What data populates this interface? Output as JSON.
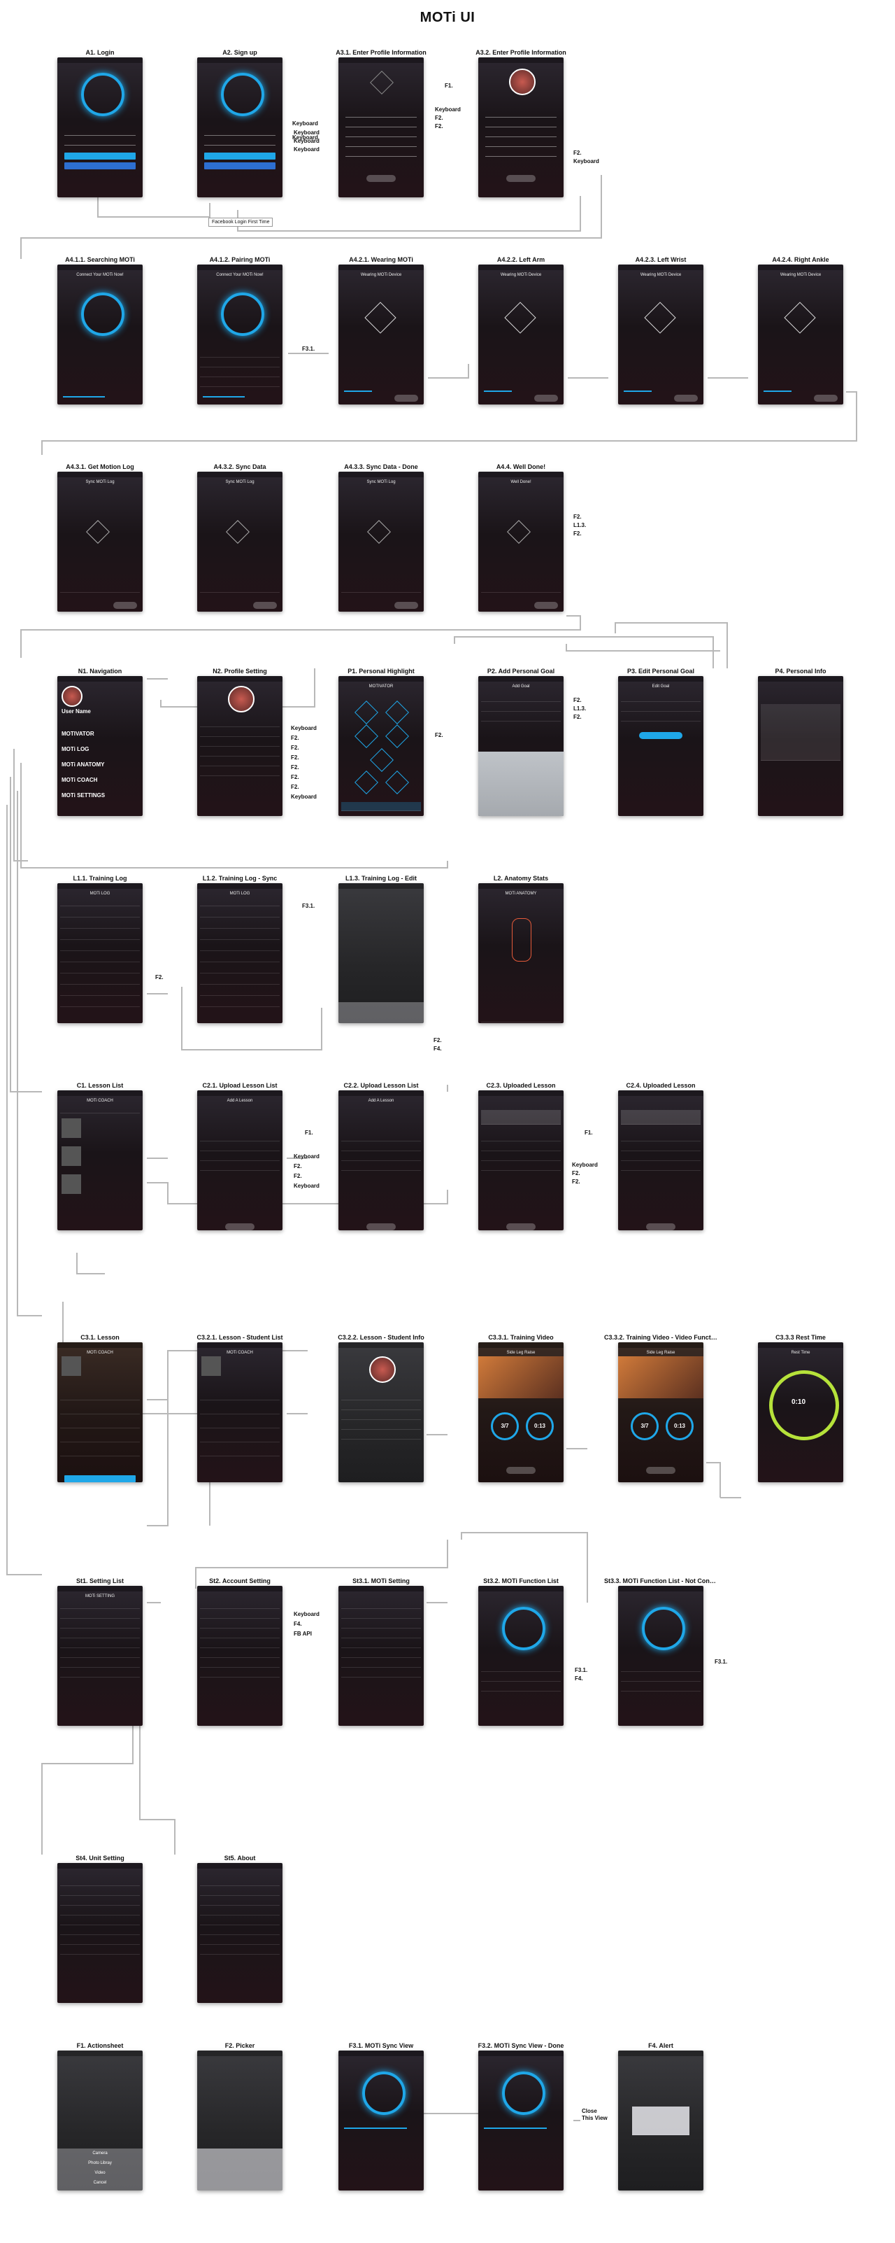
{
  "page_title": "MOTi UI",
  "brand_color": "#1fa7e8",
  "screens": [
    {
      "id": "a1",
      "label": "A1. Login",
      "inner": "",
      "kind": "login"
    },
    {
      "id": "a2",
      "label": "A2. Sign up",
      "inner": "",
      "kind": "login"
    },
    {
      "id": "a31",
      "label": "A3.1. Enter Profile Information",
      "inner": "",
      "kind": "form"
    },
    {
      "id": "a32",
      "label": "A3.2. Enter Profile Information",
      "inner": "",
      "kind": "formavatar"
    },
    {
      "id": "a411",
      "label": "A4.1.1. Searching MOTi",
      "inner": "Connect Your MOTi Now!",
      "kind": "ring"
    },
    {
      "id": "a412",
      "label": "A4.1.2. Pairing MOTi",
      "inner": "Connect Your MOTi Now!",
      "kind": "ringlist"
    },
    {
      "id": "a421",
      "label": "A4.2.1. Wearing MOTi",
      "inner": "Wearing MOTi Device",
      "kind": "device"
    },
    {
      "id": "a422",
      "label": "A4.2.2. Left Arm",
      "inner": "Wearing MOTi Device",
      "kind": "device"
    },
    {
      "id": "a423",
      "label": "A4.2.3. Left Wrist",
      "inner": "Wearing MOTi Device",
      "kind": "device"
    },
    {
      "id": "a424",
      "label": "A4.2.4. Right Ankle",
      "inner": "Wearing MOTi Device",
      "kind": "device"
    },
    {
      "id": "a431",
      "label": "A4.3.1. Get Motion Log",
      "inner": "Sync MOTi Log",
      "kind": "sync"
    },
    {
      "id": "a432",
      "label": "A4.3.2. Sync Data",
      "inner": "Sync MOTi Log",
      "kind": "sync"
    },
    {
      "id": "a433",
      "label": "A4.3.3. Sync Data - Done",
      "inner": "Sync MOTi Log",
      "kind": "sync"
    },
    {
      "id": "a44",
      "label": "A4.4. Well Done!",
      "inner": "Well Done!",
      "kind": "sync"
    },
    {
      "id": "n1",
      "label": "N1. Navigation",
      "inner": "",
      "kind": "nav"
    },
    {
      "id": "n2",
      "label": "N2. Profile Setting",
      "inner": "",
      "kind": "profile"
    },
    {
      "id": "p1",
      "label": "P1. Personal Highlight",
      "inner": "MOTIVATOR",
      "kind": "highlight"
    },
    {
      "id": "p2",
      "label": "P2. Add Personal Goal",
      "inner": "Add Goal",
      "kind": "goal"
    },
    {
      "id": "p3",
      "label": "P3. Edit Personal Goal",
      "inner": "Edit Goal",
      "kind": "goaledit"
    },
    {
      "id": "p4",
      "label": "P4. Personal Info",
      "inner": "",
      "kind": "info"
    },
    {
      "id": "l11",
      "label": "L1.1. Training Log",
      "inner": "MOTi LOG",
      "kind": "log"
    },
    {
      "id": "l12",
      "label": "L1.2. Training Log - Sync",
      "inner": "MOTi LOG",
      "kind": "log"
    },
    {
      "id": "l13",
      "label": "L1.3. Training Log - Edit",
      "inner": "",
      "kind": "logedit"
    },
    {
      "id": "l2",
      "label": "L2. Anatomy Stats",
      "inner": "MOTi ANATOMY",
      "kind": "anatomy"
    },
    {
      "id": "c1",
      "label": "C1. Lesson List",
      "inner": "MOTi COACH",
      "kind": "lessons"
    },
    {
      "id": "c21",
      "label": "C2.1. Upload Lesson List",
      "inner": "Add A Lesson",
      "kind": "upload"
    },
    {
      "id": "c22",
      "label": "C2.2. Upload Lesson List",
      "inner": "Add A Lesson",
      "kind": "upload"
    },
    {
      "id": "c23",
      "label": "C2.3. Uploaded Lesson",
      "inner": "",
      "kind": "uploaded"
    },
    {
      "id": "c24",
      "label": "C2.4. Uploaded Lesson",
      "inner": "",
      "kind": "uploaded"
    },
    {
      "id": "c31",
      "label": "C3.1. Lesson",
      "inner": "MOTi COACH",
      "kind": "lesson"
    },
    {
      "id": "c321",
      "label": "C3.2.1. Lesson - Student List",
      "inner": "MOTi COACH",
      "kind": "students"
    },
    {
      "id": "c322",
      "label": "C3.2.2. Lesson - Student Info",
      "inner": "",
      "kind": "studentinfo"
    },
    {
      "id": "c331",
      "label": "C3.3.1. Training Video",
      "inner": "Side Leg Raise",
      "kind": "video"
    },
    {
      "id": "c332",
      "label": "C3.3.2. Training Video - Video Function",
      "inner": "Side Leg Raise",
      "kind": "video"
    },
    {
      "id": "c333",
      "label": "C3.3.3 Rest Time",
      "inner": "Rest Time",
      "kind": "rest"
    },
    {
      "id": "st1",
      "label": "St1. Setting List",
      "inner": "MOTi SETTING",
      "kind": "settings"
    },
    {
      "id": "st2",
      "label": "St2. Account Setting",
      "inner": "",
      "kind": "account"
    },
    {
      "id": "st31",
      "label": "St3.1. MOTi Setting",
      "inner": "",
      "kind": "motiset"
    },
    {
      "id": "st32",
      "label": "St3.2. MOTi Function List",
      "inner": "",
      "kind": "ringbig"
    },
    {
      "id": "st33",
      "label": "St3.3. MOTi Function List - Not Connect",
      "inner": "",
      "kind": "ringbig"
    },
    {
      "id": "st4",
      "label": "St4. Unit Setting",
      "inner": "",
      "kind": "units"
    },
    {
      "id": "st5",
      "label": "St5. About",
      "inner": "",
      "kind": "about"
    },
    {
      "id": "f1",
      "label": "F1. Actionsheet",
      "inner": "",
      "kind": "actionsheet"
    },
    {
      "id": "f2",
      "label": "F2. Picker",
      "inner": "",
      "kind": "picker"
    },
    {
      "id": "f31",
      "label": "F3.1. MOTi Sync View",
      "inner": "",
      "kind": "syncview"
    },
    {
      "id": "f32",
      "label": "F3.2. MOTi Sync View - Done",
      "inner": "",
      "kind": "syncview"
    },
    {
      "id": "f4",
      "label": "F4. Alert",
      "inner": "",
      "kind": "alert"
    }
  ],
  "nav_items": [
    "MOTIVATOR",
    "MOTi LOG",
    "MOTi ANATOMY",
    "MOTi COACH",
    "MOTi SETTINGS"
  ],
  "nav_user": "User Name",
  "actionsheet_items": [
    "Camera",
    "Photo Libray",
    "Video",
    "Cancel"
  ],
  "rest_value": "0:10",
  "video_values": [
    "3/7",
    "0:13"
  ],
  "notes": {
    "facebook_note": "Facebook Login First Time",
    "close_view": "Close\nThis View"
  },
  "annotations": [
    {
      "id": "n_a1_k1",
      "text": "Keyboard"
    },
    {
      "id": "n_a1_k2",
      "text": "Keyboard"
    },
    {
      "id": "n_a2_k1",
      "text": "Keyboard"
    },
    {
      "id": "n_a2_k2",
      "text": "Keyboard"
    },
    {
      "id": "n_a2_k3",
      "text": "Keyboard"
    },
    {
      "id": "n_a31_f1",
      "text": "F1."
    },
    {
      "id": "n_a31_k",
      "text": "Keyboard"
    },
    {
      "id": "n_a31_f2a",
      "text": "F2."
    },
    {
      "id": "n_a31_f2b",
      "text": "F2."
    },
    {
      "id": "n_a32_f2",
      "text": "F2."
    },
    {
      "id": "n_a32_k",
      "text": "Keyboard"
    },
    {
      "id": "n_a412_f31",
      "text": "F3.1."
    },
    {
      "id": "n_a44_f2",
      "text": "F2."
    },
    {
      "id": "n_a44_l13",
      "text": "L1.3."
    },
    {
      "id": "n_a44_f2b",
      "text": "F2."
    },
    {
      "id": "n_n2_k1",
      "text": "Keyboard"
    },
    {
      "id": "n_n2_f2a",
      "text": "F2."
    },
    {
      "id": "n_n2_f2b",
      "text": "F2."
    },
    {
      "id": "n_n2_f2c",
      "text": "F2."
    },
    {
      "id": "n_n2_f2d",
      "text": "F2."
    },
    {
      "id": "n_n2_f2e",
      "text": "F2."
    },
    {
      "id": "n_n2_f2f",
      "text": "F2."
    },
    {
      "id": "n_n2_k2",
      "text": "Keyboard"
    },
    {
      "id": "n_p1_f2",
      "text": "F2."
    },
    {
      "id": "n_p2_f2a",
      "text": "F2."
    },
    {
      "id": "n_p2_l13",
      "text": "L1.3."
    },
    {
      "id": "n_p2_f2b",
      "text": "F2."
    },
    {
      "id": "n_l12_f31",
      "text": "F3.1."
    },
    {
      "id": "n_l11_f2",
      "text": "F2."
    },
    {
      "id": "n_l13_f2",
      "text": "F2."
    },
    {
      "id": "n_l13_f4",
      "text": "F4."
    },
    {
      "id": "n_c21_f1",
      "text": "F1."
    },
    {
      "id": "n_c21_k1",
      "text": "Keyboard"
    },
    {
      "id": "n_c21_f2a",
      "text": "F2."
    },
    {
      "id": "n_c21_f2b",
      "text": "F2."
    },
    {
      "id": "n_c21_k2",
      "text": "Keyboard"
    },
    {
      "id": "n_c23_f1",
      "text": "F1."
    },
    {
      "id": "n_c23_k",
      "text": "Keyboard"
    },
    {
      "id": "n_c23_f2a",
      "text": "F2."
    },
    {
      "id": "n_c23_f2b",
      "text": "F2."
    },
    {
      "id": "n_st2_k",
      "text": "Keyboard"
    },
    {
      "id": "n_st2_f4",
      "text": "F4."
    },
    {
      "id": "n_st2_fb",
      "text": "FB API"
    },
    {
      "id": "n_st32_f31",
      "text": "F3.1."
    },
    {
      "id": "n_st32_f4",
      "text": "F4."
    },
    {
      "id": "n_st33_f31",
      "text": "F3.1."
    }
  ]
}
